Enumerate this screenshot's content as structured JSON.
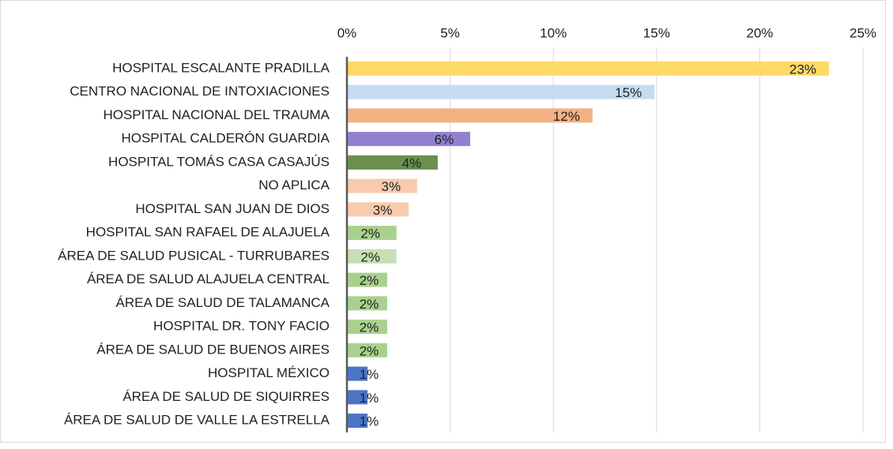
{
  "chart_data": {
    "type": "bar",
    "orientation": "horizontal",
    "categories": [
      "HOSPITAL ESCALANTE PRADILLA",
      "CENTRO NACIONAL DE INTOXIACIONES",
      "HOSPITAL NACIONAL DEL TRAUMA",
      "HOSPITAL CALDERÓN GUARDIA",
      "HOSPITAL TOMÁS CASA CASAJÚS",
      "NO APLICA",
      "HOSPITAL SAN JUAN DE DIOS",
      "HOSPITAL SAN RAFAEL DE ALAJUELA",
      "ÁREA DE SALUD PUSICAL - TURRUBARES",
      "ÁREA DE SALUD ALAJUELA CENTRAL",
      "ÁREA DE SALUD DE TALAMANCA",
      "HOSPITAL DR. TONY FACIO",
      "ÁREA DE SALUD DE BUENOS AIRES",
      "HOSPITAL MÉXICO",
      "ÁREA DE SALUD DE SIQUIRRES",
      "ÁREA DE SALUD DE VALLE LA ESTRELLA"
    ],
    "values": [
      23.35,
      14.9,
      11.9,
      5.97,
      4.4,
      3.4,
      2.99,
      2.4,
      2.4,
      1.95,
      1.95,
      1.95,
      1.95,
      1.0,
      1.0,
      1.0
    ],
    "value_labels": [
      "23%",
      "15%",
      "12%",
      "6%",
      "4%",
      "3%",
      "3%",
      "2%",
      "2%",
      "2%",
      "2%",
      "2%",
      "2%",
      "1%",
      "1%",
      "1%"
    ],
    "colors": [
      "#ffd966",
      "#c5dcf0",
      "#f4b183",
      "#9181d0",
      "#6a8f4f",
      "#f8cbad",
      "#f8cbad",
      "#a9d18e",
      "#c5e0b4",
      "#a9d18e",
      "#a9d18e",
      "#a9d18e",
      "#a9d18e",
      "#4a74c6",
      "#4a74c6",
      "#4a74c6"
    ],
    "xlim": [
      0,
      25
    ],
    "xticks": [
      {
        "value": 0,
        "label": "0%"
      },
      {
        "value": 5,
        "label": "5%"
      },
      {
        "value": 10,
        "label": "10%"
      },
      {
        "value": 15,
        "label": "15%"
      },
      {
        "value": 20,
        "label": "20%"
      },
      {
        "value": 25,
        "label": "25%"
      }
    ],
    "grid": true
  }
}
